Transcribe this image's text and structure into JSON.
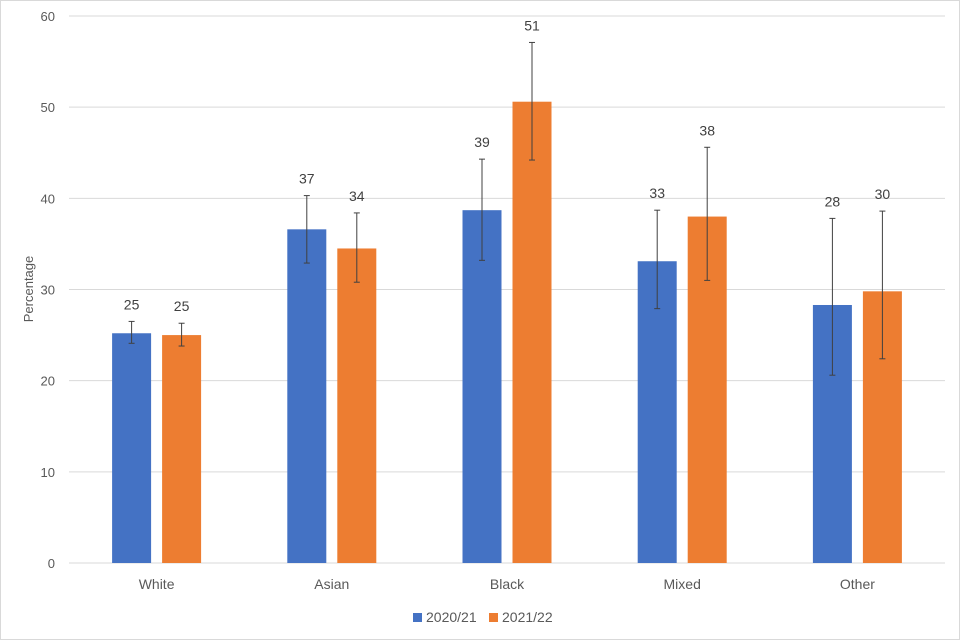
{
  "chart_data": {
    "type": "bar",
    "title": "",
    "xlabel": "",
    "ylabel": "Percentage",
    "ylim": [
      0,
      60
    ],
    "yticks": [
      0,
      10,
      20,
      30,
      40,
      50,
      60
    ],
    "grid": true,
    "legend_position": "bottom",
    "categories": [
      "White",
      "Asian",
      "Black",
      "Mixed",
      "Other"
    ],
    "series": [
      {
        "name": "2020/21",
        "color": "#4472c4",
        "values": [
          25.2,
          36.6,
          38.7,
          33.1,
          28.3
        ],
        "labels": [
          "25",
          "37",
          "39",
          "33",
          "28"
        ],
        "error_low": [
          24.1,
          32.9,
          33.2,
          27.9,
          20.6
        ],
        "error_high": [
          26.5,
          40.3,
          44.3,
          38.7,
          37.8
        ]
      },
      {
        "name": "2021/22",
        "color": "#ed7d31",
        "values": [
          25.0,
          34.5,
          50.6,
          38.0,
          29.8
        ],
        "labels": [
          "25",
          "34",
          "51",
          "38",
          "30"
        ],
        "error_low": [
          23.8,
          30.8,
          44.2,
          31.0,
          22.4
        ],
        "error_high": [
          26.3,
          38.4,
          57.1,
          45.6,
          38.6
        ]
      }
    ]
  }
}
